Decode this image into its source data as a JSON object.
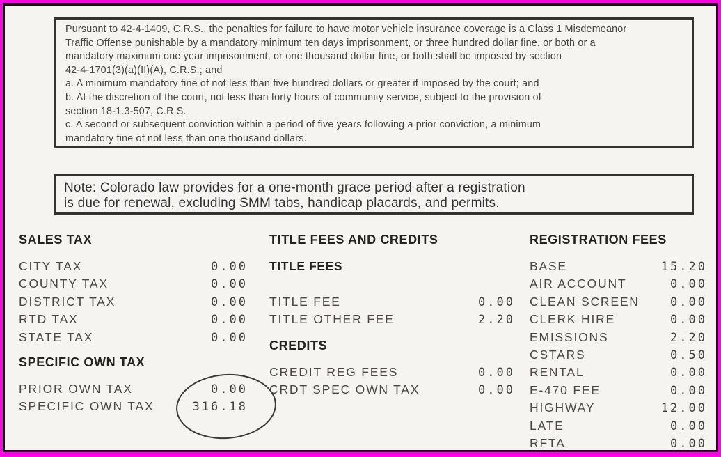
{
  "colors": {
    "frame_magenta": "#fb04e6",
    "inner_border": "#200a18",
    "paper": "#f5f4f1",
    "ink": "#3c3a37"
  },
  "document": {
    "penalty_notice": {
      "lines": [
        "Pursuant to 42-4-1409, C.R.S., the penalties for failure to have motor vehicle insurance coverage is a Class 1 Misdemeanor",
        "Traffic Offense punishable by a mandatory minimum ten days imprisonment, or three hundred dollar fine, or both or a",
        "mandatory maximum one year imprisonment, or one thousand dollar fine, or both shall be imposed by section",
        "42-4-1701(3)(a)(II)(A), C.R.S.; and",
        "a. A minimum mandatory fine of not less than five hundred dollars or greater if imposed by the court; and",
        "b. At the discretion of the court, not less than forty hours of community service, subject to the provision of",
        "section 18-1.3-507, C.R.S.",
        "c. A second or subsequent conviction within a period of five years following a prior conviction, a minimum",
        "mandatory fine of not less than one thousand dollars."
      ]
    },
    "grace_note": {
      "lines": [
        "Note: Colorado law provides for a one-month grace period after a registration",
        "is due for renewal, excluding SMM tabs, handicap placards, and permits."
      ]
    },
    "sales_tax": {
      "title": "SALES TAX",
      "rows": [
        {
          "label": "CITY TAX",
          "value": "0.00"
        },
        {
          "label": "COUNTY TAX",
          "value": "0.00"
        },
        {
          "label": "DISTRICT TAX",
          "value": "0.00"
        },
        {
          "label": "RTD TAX",
          "value": "0.00"
        },
        {
          "label": "STATE TAX",
          "value": "0.00"
        }
      ]
    },
    "specific_own_tax": {
      "title": "SPECIFIC OWN TAX",
      "rows": [
        {
          "label": "PRIOR OWN TAX",
          "value": "0.00"
        },
        {
          "label": "SPECIFIC OWN TAX",
          "value": "316.18"
        }
      ]
    },
    "title_fees_credits": {
      "title": "TITLE FEES AND CREDITS",
      "title_fees": {
        "title": "TITLE FEES",
        "rows": [
          {
            "label": "TITLE FEE",
            "value": "0.00"
          },
          {
            "label": "TITLE OTHER FEE",
            "value": "2.20"
          }
        ]
      },
      "credits": {
        "title": "CREDITS",
        "rows": [
          {
            "label": "CREDIT REG FEES",
            "value": "0.00"
          },
          {
            "label": "CRDT SPEC OWN TAX",
            "value": "0.00"
          }
        ]
      }
    },
    "registration_fees": {
      "title": "REGISTRATION FEES",
      "rows": [
        {
          "label": "BASE",
          "value": "15.20"
        },
        {
          "label": "AIR ACCOUNT",
          "value": "0.00"
        },
        {
          "label": "CLEAN SCREEN",
          "value": "0.00"
        },
        {
          "label": "CLERK HIRE",
          "value": "0.00"
        },
        {
          "label": "EMISSIONS",
          "value": "2.20"
        },
        {
          "label": "CSTARS",
          "value": "0.50"
        },
        {
          "label": "RENTAL",
          "value": "0.00"
        },
        {
          "label": "E-470 FEE",
          "value": "0.00"
        },
        {
          "label": "HIGHWAY",
          "value": "12.00"
        },
        {
          "label": "LATE",
          "value": "0.00"
        },
        {
          "label": "RFTA",
          "value": "0.00"
        }
      ]
    },
    "annotation": {
      "circled_value": "316.18"
    }
  }
}
